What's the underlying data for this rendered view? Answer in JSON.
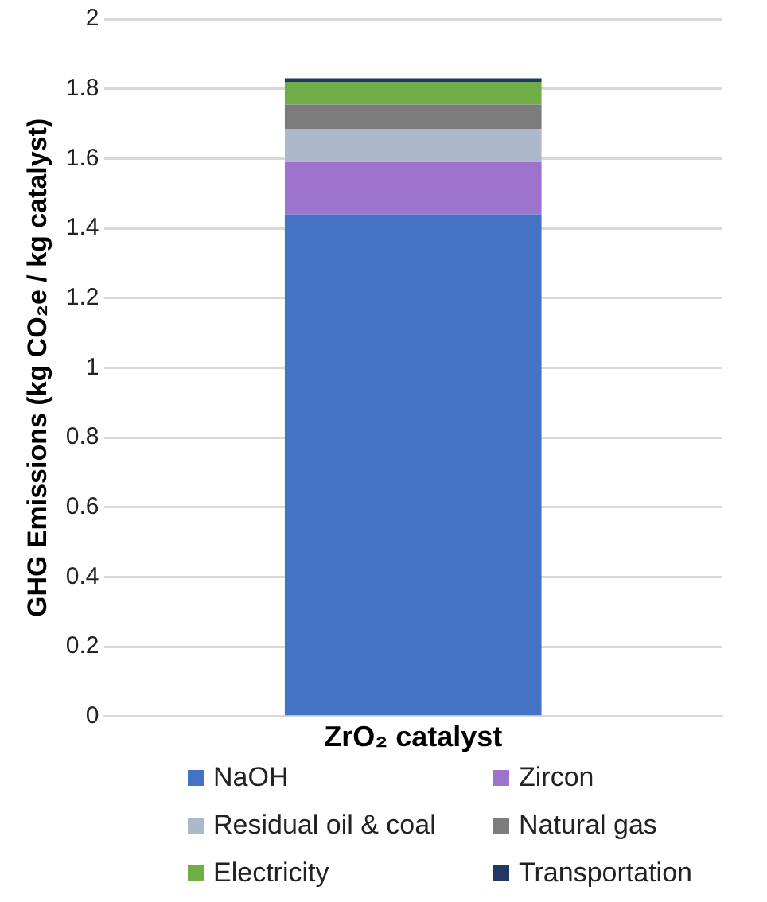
{
  "chart_data": {
    "type": "bar",
    "stacked": true,
    "ylabel": "GHG Emissions (kg CO₂e / kg catalyst)",
    "categories": [
      "ZrO₂ catalyst"
    ],
    "series": [
      {
        "name": "NaOH",
        "color": "#4472c4",
        "values": [
          1.44
        ]
      },
      {
        "name": "Zircon",
        "color": "#9e73cb",
        "values": [
          0.15
        ]
      },
      {
        "name": "Residual oil & coal",
        "color": "#adb9ca",
        "values": [
          0.095
        ]
      },
      {
        "name": "Natural gas",
        "color": "#7b7b7b",
        "values": [
          0.07
        ]
      },
      {
        "name": "Electricity",
        "color": "#70ad47",
        "values": [
          0.065
        ]
      },
      {
        "name": "Transportation",
        "color": "#203864",
        "values": [
          0.01
        ]
      }
    ],
    "ylim": [
      0,
      2
    ],
    "yticks": [
      0,
      0.2,
      0.4,
      0.6,
      0.8,
      1,
      1.2,
      1.4,
      1.6,
      1.8,
      2
    ],
    "grid": "y",
    "legend": "bottom"
  }
}
